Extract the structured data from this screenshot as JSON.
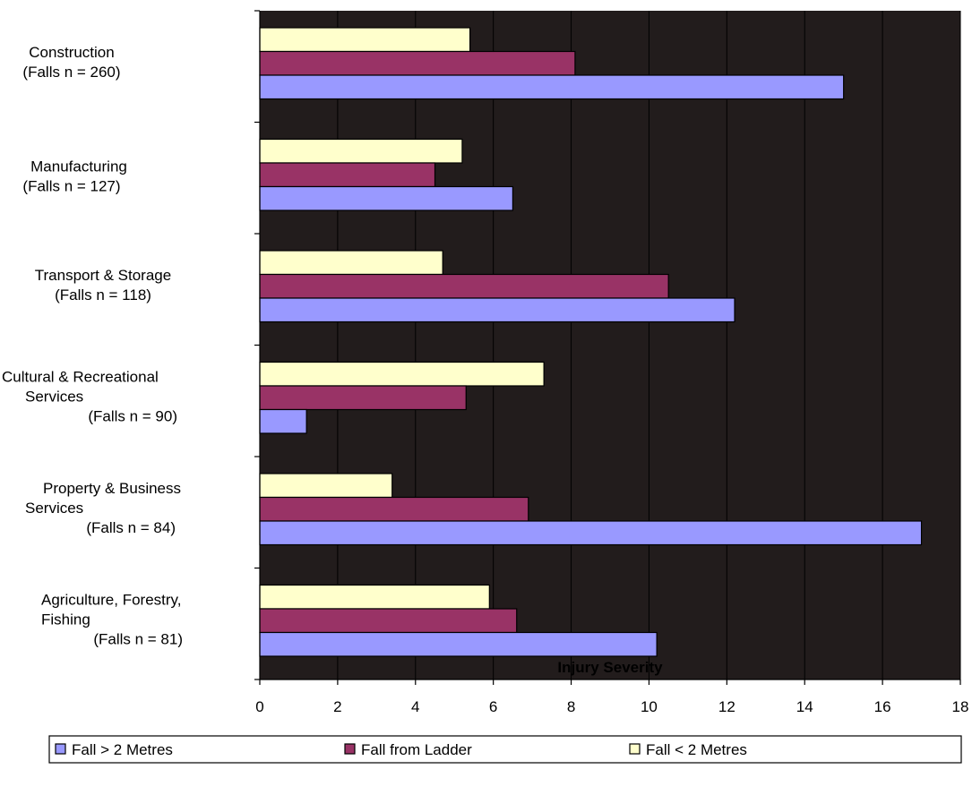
{
  "chart_data": {
    "type": "bar",
    "orientation": "horizontal",
    "title": "",
    "xlabel": "Injury Severity",
    "ylabel": "",
    "xlim": [
      0,
      18
    ],
    "x_ticks": [
      "0",
      "2",
      "4",
      "6",
      "8",
      "10",
      "12",
      "14",
      "16",
      "18"
    ],
    "grid": true,
    "legend_position": "bottom",
    "plot_background": "#221c1c",
    "categories": [
      {
        "lines": [
          "Construction",
          "(Falls n = 260)"
        ]
      },
      {
        "lines": [
          "Manufacturing",
          "(Falls n = 127)"
        ]
      },
      {
        "lines": [
          "Transport & Storage",
          "(Falls n = 118)"
        ]
      },
      {
        "lines": [
          "Cultural & Recreational",
          "Services",
          "(Falls n = 90)"
        ]
      },
      {
        "lines": [
          "Property & Business",
          "Services",
          "(Falls n = 84)"
        ]
      },
      {
        "lines": [
          "Agriculture, Forestry,",
          "Fishing",
          "(Falls n = 81)"
        ]
      }
    ],
    "series": [
      {
        "name": "Fall > 2 Metres",
        "color": "#9999ff",
        "values": [
          15.0,
          6.5,
          12.2,
          1.2,
          17.0,
          10.2
        ]
      },
      {
        "name": "Fall from Ladder",
        "color": "#993366",
        "values": [
          8.1,
          4.5,
          10.5,
          5.3,
          6.9,
          6.6
        ]
      },
      {
        "name": "Fall < 2 Metres",
        "color": "#ffffcc",
        "values": [
          5.4,
          5.2,
          4.7,
          7.3,
          3.4,
          5.9
        ]
      }
    ]
  }
}
